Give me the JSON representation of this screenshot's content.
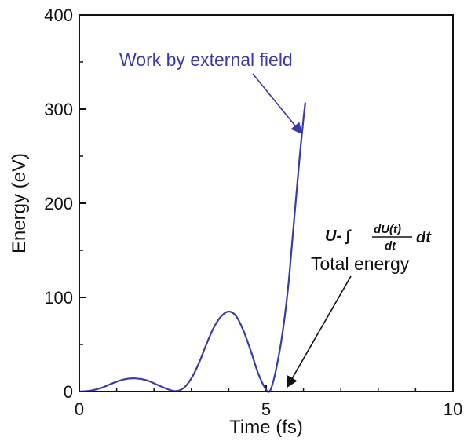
{
  "chart_data": {
    "type": "line",
    "xlabel": "Time (fs)",
    "ylabel": "Energy (eV)",
    "xlim": [
      0,
      10
    ],
    "ylim": [
      0,
      400
    ],
    "xticks": [
      "0",
      "5",
      "10"
    ],
    "yticks": [
      "0",
      "100",
      "200",
      "300",
      "400"
    ],
    "grid": false,
    "series": [
      {
        "name": "Work by external field",
        "color": "#3a3aa8",
        "x": [
          0,
          0.3,
          0.6,
          0.9,
          1.2,
          1.5,
          1.8,
          2.1,
          2.4,
          2.6,
          2.8,
          3.0,
          3.2,
          3.4,
          3.6,
          3.8,
          4.0,
          4.2,
          4.4,
          4.6,
          4.8,
          5.0,
          5.1,
          5.2,
          5.3,
          5.4,
          5.5,
          5.6,
          5.7,
          5.8,
          5.9,
          6.0,
          6.05
        ],
        "y": [
          0,
          1,
          4,
          9,
          13,
          14,
          12,
          7,
          2,
          0.5,
          4,
          14,
          30,
          50,
          68,
          80,
          85,
          80,
          64,
          42,
          18,
          2,
          0.5,
          12,
          30,
          52,
          80,
          115,
          160,
          205,
          250,
          290,
          307
        ]
      },
      {
        "name": "Total energy",
        "color": "#111111",
        "x": [
          0,
          6.0
        ],
        "y": [
          0,
          0
        ]
      }
    ],
    "annotations": [
      {
        "text": "Work by external field",
        "color": "#3a3aa8",
        "arrow_to": [
          6.0,
          280
        ]
      },
      {
        "text": "Total energy",
        "color": "#111111",
        "arrow_to": [
          5.45,
          3
        ]
      },
      {
        "formula_left": "U- ∫",
        "numerator": "dU(t)",
        "denominator": "dt",
        "formula_right": "dt",
        "color": "#111111"
      }
    ]
  }
}
